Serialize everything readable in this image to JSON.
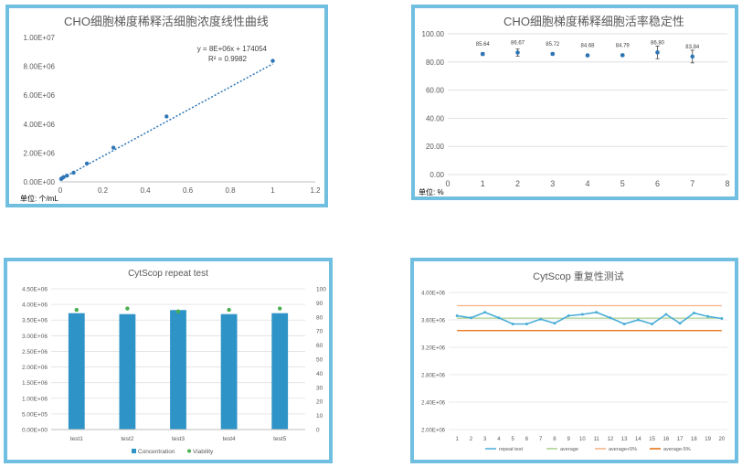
{
  "chart_data": [
    {
      "type": "scatter",
      "title": "CHO细胞梯度稀释活细胞浓度线性曲线",
      "unit_label": "单位: 个/mL",
      "equation": "y = 8E+06x + 174054",
      "r_squared": "R² = 0.9982",
      "x": [
        0.00390625,
        0.0078125,
        0.015625,
        0.03125,
        0.0625,
        0.125,
        0.25,
        0.5,
        1
      ],
      "y": [
        200000,
        250000,
        330000,
        430000,
        640000,
        1270000,
        2370000,
        4530000,
        8380000
      ],
      "trendline": {
        "slope": 8000000,
        "intercept": 174054
      },
      "xlim": [
        0,
        1.2
      ],
      "ylim": [
        0,
        10000000
      ],
      "xticks": [
        "0",
        "0.2",
        "0.4",
        "0.6",
        "0.8",
        "1",
        "1.2"
      ],
      "yticks": [
        "0.00E+00",
        "2.00E+06",
        "4.00E+06",
        "6.00E+06",
        "8.00E+06",
        "1.00E+07"
      ],
      "color": "#2e75b6"
    },
    {
      "type": "scatter",
      "title": "CHO细胞梯度稀释细胞活率稳定性",
      "unit_label": "单位: %",
      "x": [
        1,
        2,
        3,
        4,
        5,
        6,
        7
      ],
      "y": [
        85.64,
        86.67,
        85.72,
        84.68,
        84.79,
        86.8,
        83.84
      ],
      "data_labels": [
        "85.64",
        "86.67",
        "85.72",
        "84.68",
        "84.79",
        "86.80",
        "83.84"
      ],
      "error": [
        1.0,
        2.5,
        0.8,
        0.8,
        0.8,
        4.5,
        4.5
      ],
      "xlim": [
        0,
        8
      ],
      "ylim": [
        0,
        100
      ],
      "xticks": [
        "0",
        "1",
        "2",
        "3",
        "4",
        "5",
        "6",
        "7",
        "8"
      ],
      "yticks": [
        "0.00",
        "20.00",
        "40.00",
        "60.00",
        "80.00",
        "100.00"
      ],
      "grid": true,
      "color": "#2e75b6"
    },
    {
      "type": "bar",
      "title": "CytScop repeat test",
      "categories": [
        "test1",
        "test2",
        "test3",
        "test4",
        "test5"
      ],
      "series": [
        {
          "name": "Concentration",
          "axis": "left",
          "values": [
            3720000,
            3690000,
            3820000,
            3690000,
            3720000
          ],
          "color": "#2e93c7"
        },
        {
          "name": "Viability",
          "axis": "right",
          "values": [
            85,
            86,
            84,
            85,
            86
          ],
          "color": "#4caf50"
        }
      ],
      "ylim": [
        0,
        4500000
      ],
      "y2lim": [
        0,
        100
      ],
      "yticks": [
        "0.00E+00",
        "5.00E+05",
        "1.00E+06",
        "1.50E+06",
        "2.00E+06",
        "2.50E+06",
        "3.00E+06",
        "3.50E+06",
        "4.00E+06",
        "4.50E+06"
      ],
      "y2ticks": [
        "0",
        "10",
        "20",
        "30",
        "40",
        "50",
        "60",
        "70",
        "80",
        "90",
        "100"
      ],
      "legend": "bottom",
      "grid": true
    },
    {
      "type": "line",
      "title": "CytScop 重复性测试",
      "x": [
        1,
        2,
        3,
        4,
        5,
        6,
        7,
        8,
        9,
        10,
        11,
        12,
        13,
        14,
        15,
        16,
        17,
        18,
        19,
        20
      ],
      "xticks": [
        "1",
        "2",
        "3",
        "4",
        "5",
        "6",
        "7",
        "8",
        "9",
        "10",
        "11",
        "12",
        "13",
        "14",
        "15",
        "16",
        "17",
        "18",
        "19",
        "20"
      ],
      "series": [
        {
          "name": "repeat test",
          "values": [
            3660000,
            3630000,
            3710000,
            3630000,
            3540000,
            3540000,
            3610000,
            3550000,
            3660000,
            3680000,
            3710000,
            3630000,
            3540000,
            3600000,
            3540000,
            3680000,
            3550000,
            3700000,
            3650000,
            3620000
          ],
          "color": "#4aaed8",
          "markers": true
        },
        {
          "name": "average",
          "values": [
            3625000,
            3625000,
            3625000,
            3625000,
            3625000,
            3625000,
            3625000,
            3625000,
            3625000,
            3625000,
            3625000,
            3625000,
            3625000,
            3625000,
            3625000,
            3625000,
            3625000,
            3625000,
            3625000,
            3625000
          ],
          "color": "#a9d18e"
        },
        {
          "name": "average+5%",
          "values": [
            3806250,
            3806250,
            3806250,
            3806250,
            3806250,
            3806250,
            3806250,
            3806250,
            3806250,
            3806250,
            3806250,
            3806250,
            3806250,
            3806250,
            3806250,
            3806250,
            3806250,
            3806250,
            3806250,
            3806250
          ],
          "color": "#f4b183"
        },
        {
          "name": "average-5%",
          "values": [
            3443750,
            3443750,
            3443750,
            3443750,
            3443750,
            3443750,
            3443750,
            3443750,
            3443750,
            3443750,
            3443750,
            3443750,
            3443750,
            3443750,
            3443750,
            3443750,
            3443750,
            3443750,
            3443750,
            3443750
          ],
          "color": "#e46c0a"
        }
      ],
      "ylim": [
        2000000,
        4000000
      ],
      "yticks": [
        "2.00E+06",
        "2.40E+06",
        "2.80E+06",
        "3.20E+06",
        "3.60E+06",
        "4.00E+06"
      ],
      "legend": "bottom",
      "grid": true
    }
  ]
}
